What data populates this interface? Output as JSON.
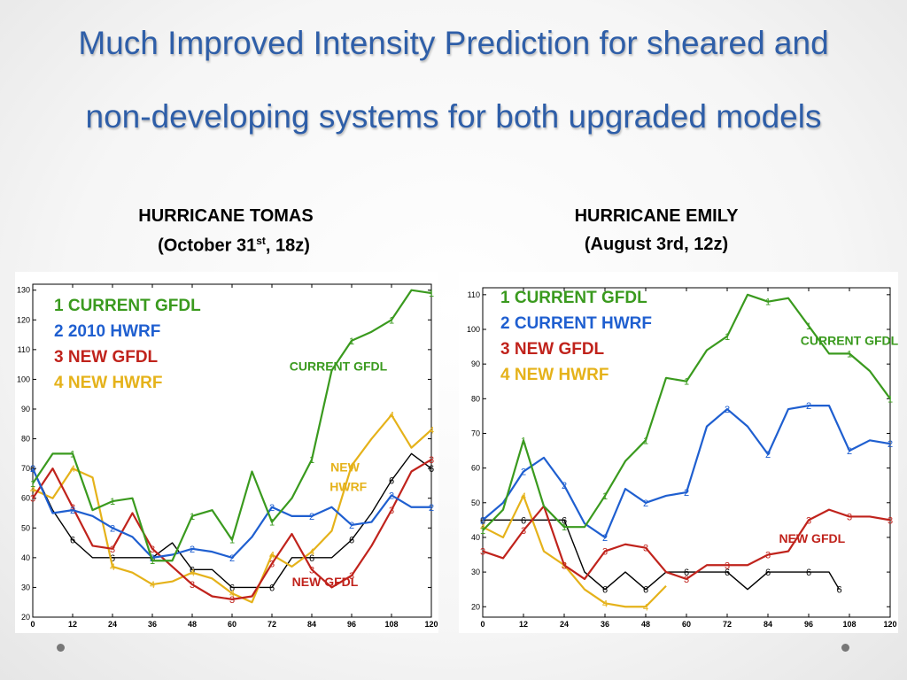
{
  "slide": {
    "title_line1": "Much Improved Intensity Prediction for sheared and",
    "title_line2": "non-developing systems  for both upgraded models"
  },
  "colors": {
    "title": "#2e5ea8",
    "gfdl_current": "#3a9a1e",
    "hwrf": "#1f5fd0",
    "gfdl_new": "#c0231c",
    "hwrf_new": "#e5b21a",
    "obs": "#000000"
  },
  "chart_data": [
    {
      "type": "line",
      "heading": "HURRICANE TOMAS",
      "subheading_pre": "(October 31",
      "subheading_sup": "st",
      "subheading_post": ",  18z)",
      "xticks": [
        0,
        12,
        24,
        36,
        48,
        60,
        72,
        84,
        96,
        108,
        120
      ],
      "yticks": [
        20,
        30,
        40,
        50,
        60,
        70,
        80,
        90,
        100,
        110,
        120,
        130
      ],
      "xlim": [
        0,
        120
      ],
      "ylim": [
        20,
        132
      ],
      "legend": [
        {
          "text": "1 CURRENT GFDL",
          "color": "#3a9a1e"
        },
        {
          "text": "2 2010 HWRF",
          "color": "#1f5fd0"
        },
        {
          "text": "3 NEW GFDL",
          "color": "#c0231c"
        },
        {
          "text": "4 NEW HWRF",
          "color": "#e5b21a"
        }
      ],
      "annotations": [
        {
          "text": "CURRENT GFDL",
          "color": "#3a9a1e",
          "x": 92,
          "y": 103
        },
        {
          "text": "NEW",
          "color": "#e5b21a",
          "x": 94,
          "y": 69
        },
        {
          "text": "HWRF",
          "color": "#e5b21a",
          "x": 95,
          "y": 62.5
        },
        {
          "text": "NEW GFDL",
          "color": "#c0231c",
          "x": 88,
          "y": 30.5
        }
      ],
      "series": [
        {
          "marker": "1",
          "color": "#3a9a1e",
          "x": [
            0,
            6,
            12,
            18,
            24,
            30,
            36,
            42,
            48,
            54,
            60,
            66,
            72,
            78,
            84,
            90,
            96,
            102,
            108,
            114,
            120
          ],
          "y": [
            65,
            75,
            75,
            56,
            59,
            60,
            39,
            39,
            54,
            56,
            46,
            69,
            52,
            60,
            73,
            103,
            113,
            116,
            120,
            130,
            129
          ]
        },
        {
          "marker": "2",
          "color": "#1f5fd0",
          "x": [
            0,
            6,
            12,
            18,
            24,
            30,
            36,
            42,
            48,
            54,
            60,
            66,
            72,
            78,
            84,
            90,
            96,
            102,
            108,
            114,
            120
          ],
          "y": [
            70,
            55,
            56,
            54,
            50,
            47,
            40,
            41,
            43,
            42,
            40,
            47,
            57,
            54,
            54,
            57,
            51,
            52,
            61,
            57,
            57
          ]
        },
        {
          "marker": "3",
          "color": "#c0231c",
          "x": [
            0,
            6,
            12,
            18,
            24,
            30,
            36,
            42,
            48,
            54,
            60,
            66,
            72,
            78,
            84,
            90,
            96,
            102,
            108,
            114,
            120
          ],
          "y": [
            60,
            70,
            57,
            44,
            43,
            55,
            43,
            37,
            31,
            27,
            26,
            27,
            38,
            48,
            36,
            30,
            34,
            44,
            56,
            69,
            73
          ]
        },
        {
          "marker": "4",
          "color": "#e5b21a",
          "x": [
            0,
            6,
            12,
            18,
            24,
            30,
            36,
            42,
            48,
            54,
            60,
            66,
            72,
            78,
            84,
            90,
            96,
            102,
            108,
            114,
            120
          ],
          "y": [
            63,
            60,
            70,
            67,
            37,
            35,
            31,
            32,
            35,
            33,
            28,
            25,
            41,
            37,
            42,
            49,
            71,
            80,
            88,
            77,
            83
          ]
        },
        {
          "marker": "6",
          "color": "#000000",
          "x": [
            0,
            6,
            12,
            18,
            24,
            30,
            36,
            42,
            48,
            54,
            60,
            66,
            72,
            78,
            84,
            90,
            96,
            102,
            108,
            114,
            120
          ],
          "y": [
            70,
            56,
            46,
            40,
            40,
            40,
            40,
            45,
            36,
            36,
            30,
            30,
            30,
            40,
            40,
            40,
            46,
            55,
            66,
            75,
            70
          ]
        }
      ]
    },
    {
      "type": "line",
      "heading": "HURRICANE EMILY",
      "subheading_pre": "(August 3rd,  12z)",
      "subheading_sup": "",
      "subheading_post": "",
      "xticks": [
        0,
        12,
        24,
        36,
        48,
        60,
        72,
        84,
        96,
        108,
        120
      ],
      "yticks": [
        20,
        30,
        40,
        50,
        60,
        70,
        80,
        90,
        100,
        110
      ],
      "xlim": [
        0,
        120
      ],
      "ylim": [
        17,
        112
      ],
      "legend": [
        {
          "text": "1 CURRENT GFDL",
          "color": "#3a9a1e"
        },
        {
          "text": "2 CURRENT HWRF",
          "color": "#1f5fd0"
        },
        {
          "text": "3 NEW GFDL",
          "color": "#c0231c"
        },
        {
          "text": "4 NEW HWRF",
          "color": "#e5b21a"
        }
      ],
      "annotations": [
        {
          "text": "CURRENT GFDL",
          "color": "#3a9a1e",
          "x": 108,
          "y": 95.5
        },
        {
          "text": "NEW GFDL",
          "color": "#c0231c",
          "x": 97,
          "y": 38.5
        }
      ],
      "series": [
        {
          "marker": "1",
          "color": "#3a9a1e",
          "x": [
            0,
            6,
            12,
            18,
            24,
            30,
            36,
            42,
            48,
            54,
            60,
            66,
            72,
            78,
            84,
            90,
            96,
            102,
            108,
            114,
            120
          ],
          "y": [
            42,
            48,
            68,
            49,
            43,
            43,
            52,
            62,
            68,
            86,
            85,
            94,
            98,
            110,
            108,
            109,
            101,
            93,
            93,
            88,
            80
          ]
        },
        {
          "marker": "2",
          "color": "#1f5fd0",
          "x": [
            0,
            6,
            12,
            18,
            24,
            30,
            36,
            42,
            48,
            54,
            60,
            66,
            72,
            78,
            84,
            90,
            96,
            102,
            108,
            114,
            120
          ],
          "y": [
            45,
            50,
            59,
            63,
            55,
            44,
            40,
            54,
            50,
            52,
            53,
            72,
            77,
            72,
            64,
            77,
            78,
            78,
            65,
            68,
            67
          ]
        },
        {
          "marker": "3",
          "color": "#c0231c",
          "x": [
            0,
            6,
            12,
            18,
            24,
            30,
            36,
            42,
            48,
            54,
            60,
            66,
            72,
            78,
            84,
            90,
            96,
            102,
            108,
            114,
            120
          ],
          "y": [
            36,
            34,
            42,
            49,
            32,
            28,
            36,
            38,
            37,
            30,
            28,
            32,
            32,
            32,
            35,
            36,
            45,
            48,
            46,
            46,
            45
          ]
        },
        {
          "marker": "4",
          "color": "#e5b21a",
          "x": [
            0,
            6,
            12,
            18,
            24,
            30,
            36,
            42,
            48,
            54
          ],
          "y": [
            43,
            40,
            52,
            36,
            32,
            25,
            21,
            20,
            20,
            26
          ]
        },
        {
          "marker": "6",
          "color": "#000000",
          "x": [
            0,
            6,
            12,
            18,
            24,
            30,
            36,
            42,
            48,
            54,
            60,
            66,
            72,
            78,
            84,
            90,
            96,
            102,
            105
          ],
          "y": [
            45,
            45,
            45,
            45,
            45,
            30,
            25,
            30,
            25,
            30,
            30,
            30,
            30,
            25,
            30,
            30,
            30,
            30,
            25
          ]
        }
      ]
    }
  ]
}
